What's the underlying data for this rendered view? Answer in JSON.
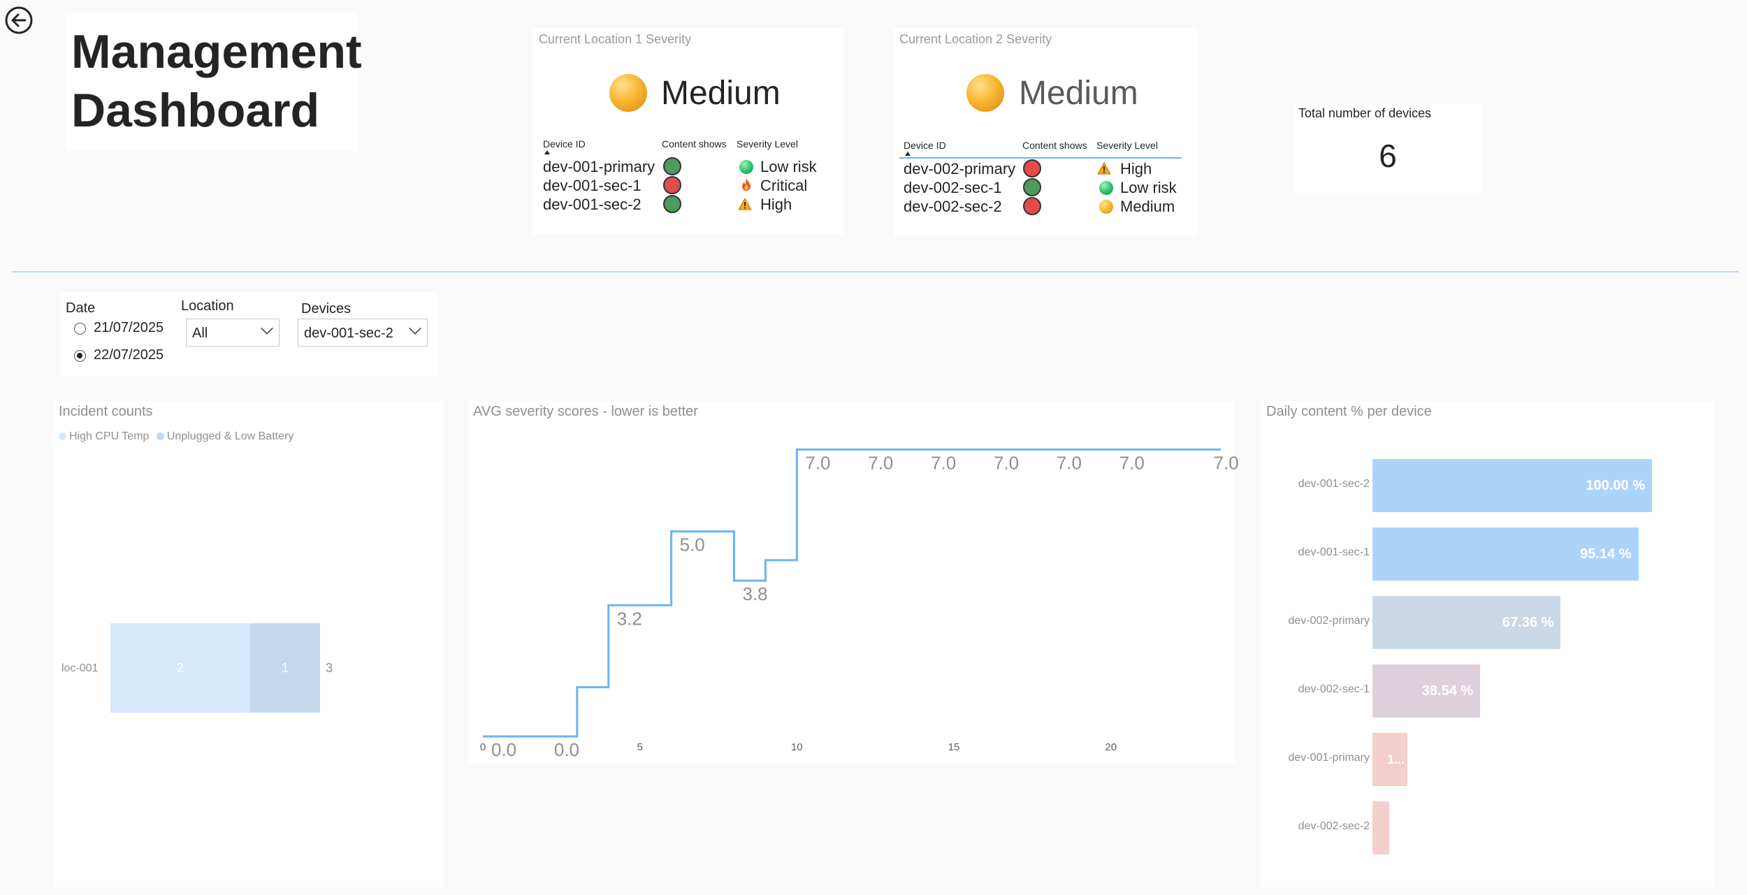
{
  "title": "Management Dashboard",
  "title_lines": [
    "Management",
    "Dashboard"
  ],
  "colors": {
    "accent_blue": "#6cb4f0",
    "divider": "#b9d6ef",
    "green_status": "#4f9a5c",
    "red_status": "#e24c4b"
  },
  "location1": {
    "heading": "Current Location 1 Severity",
    "severity": "Medium",
    "columns": [
      "Device ID",
      "Content shows",
      "Severity Level"
    ],
    "rows": [
      {
        "device": "dev-001-primary",
        "content": "green",
        "level": "Low risk",
        "level_icon": "green-ball-icon"
      },
      {
        "device": "dev-001-sec-1",
        "content": "red",
        "level": "Critical",
        "level_icon": "fire-icon"
      },
      {
        "device": "dev-001-sec-2",
        "content": "green",
        "level": "High",
        "level_icon": "warning-icon"
      }
    ]
  },
  "location2": {
    "heading": "Current Location 2 Severity",
    "severity": "Medium",
    "columns": [
      "Device ID",
      "Content shows",
      "Severity Level"
    ],
    "rows": [
      {
        "device": "dev-002-primary",
        "content": "red",
        "level": "High",
        "level_icon": "warning-icon"
      },
      {
        "device": "dev-002-sec-1",
        "content": "green",
        "level": "Low risk",
        "level_icon": "green-ball-icon"
      },
      {
        "device": "dev-002-sec-2",
        "content": "red",
        "level": "Medium",
        "level_icon": "orange-ball-icon"
      }
    ]
  },
  "total_devices": {
    "label": "Total number of devices",
    "value": "6"
  },
  "filters": {
    "date_label": "Date",
    "date_options": [
      "21/07/2025",
      "22/07/2025"
    ],
    "date_selected": "22/07/2025",
    "location_label": "Location",
    "location_value": "All",
    "devices_label": "Devices",
    "devices_value": "dev-001-sec-2"
  },
  "chart_data": [
    {
      "type": "bar",
      "orientation": "horizontal-stacked",
      "title": "Incident counts",
      "categories": [
        "loc-001"
      ],
      "series": [
        {
          "name": "High CPU Temp",
          "values": [
            2
          ],
          "color": "#d6e9fb"
        },
        {
          "name": "Unplugged & Low Battery",
          "values": [
            1
          ],
          "color": "#c5d9ee"
        }
      ],
      "totals": [
        3
      ],
      "legend": "top-left"
    },
    {
      "type": "line",
      "style": "step",
      "title": "AVG severity scores - lower is better",
      "x": [
        0,
        1,
        2,
        3,
        4,
        5,
        6,
        7,
        8,
        9,
        10,
        11,
        12,
        13,
        14,
        15,
        16,
        17,
        18,
        19,
        20,
        21,
        22,
        23
      ],
      "values": [
        0.0,
        0.0,
        0.0,
        1.2,
        3.2,
        3.2,
        5.0,
        5.0,
        3.8,
        4.3,
        7.0,
        7.0,
        7.0,
        7.0,
        7.0,
        7.0,
        7.0,
        7.0,
        7.0,
        7.0,
        7.0,
        7.0,
        7.0,
        7.0
      ],
      "data_labels": [
        {
          "x": 0,
          "y": 0.0,
          "text": "0.0"
        },
        {
          "x": 2,
          "y": 0.0,
          "text": "0.0"
        },
        {
          "x": 4,
          "y": 3.2,
          "text": "3.2"
        },
        {
          "x": 6,
          "y": 5.0,
          "text": "5.0"
        },
        {
          "x": 8,
          "y": 3.8,
          "text": "3.8"
        },
        {
          "x": 10,
          "y": 7.0,
          "text": "7.0"
        },
        {
          "x": 12,
          "y": 7.0,
          "text": "7.0"
        },
        {
          "x": 14,
          "y": 7.0,
          "text": "7.0"
        },
        {
          "x": 16,
          "y": 7.0,
          "text": "7.0"
        },
        {
          "x": 18,
          "y": 7.0,
          "text": "7.0"
        },
        {
          "x": 20,
          "y": 7.0,
          "text": "7.0"
        },
        {
          "x": 23,
          "y": 7.0,
          "text": "7.0"
        }
      ],
      "xticks": [
        0,
        5,
        10,
        15,
        20
      ],
      "xlim": [
        0,
        23.5
      ],
      "ylim": [
        0,
        7.5
      ],
      "color": "#6cb4f0"
    },
    {
      "type": "bar",
      "orientation": "horizontal",
      "title": "Daily content % per device",
      "categories": [
        "dev-001-sec-2",
        "dev-001-sec-1",
        "dev-002-primary",
        "dev-002-sec-1",
        "dev-001-primary",
        "dev-002-sec-2"
      ],
      "values": [
        100.0,
        95.14,
        67.36,
        38.54,
        12.5,
        6.0
      ],
      "labels": [
        "100.00 %",
        "95.14 %",
        "67.36 %",
        "38.54 %",
        "1...",
        ""
      ],
      "colors": [
        "#acd4f8",
        "#acd4f8",
        "#cbd8e8",
        "#dfd1dc",
        "#f3cfcb",
        "#f3cfcb"
      ],
      "xlim": [
        0,
        100
      ]
    }
  ]
}
